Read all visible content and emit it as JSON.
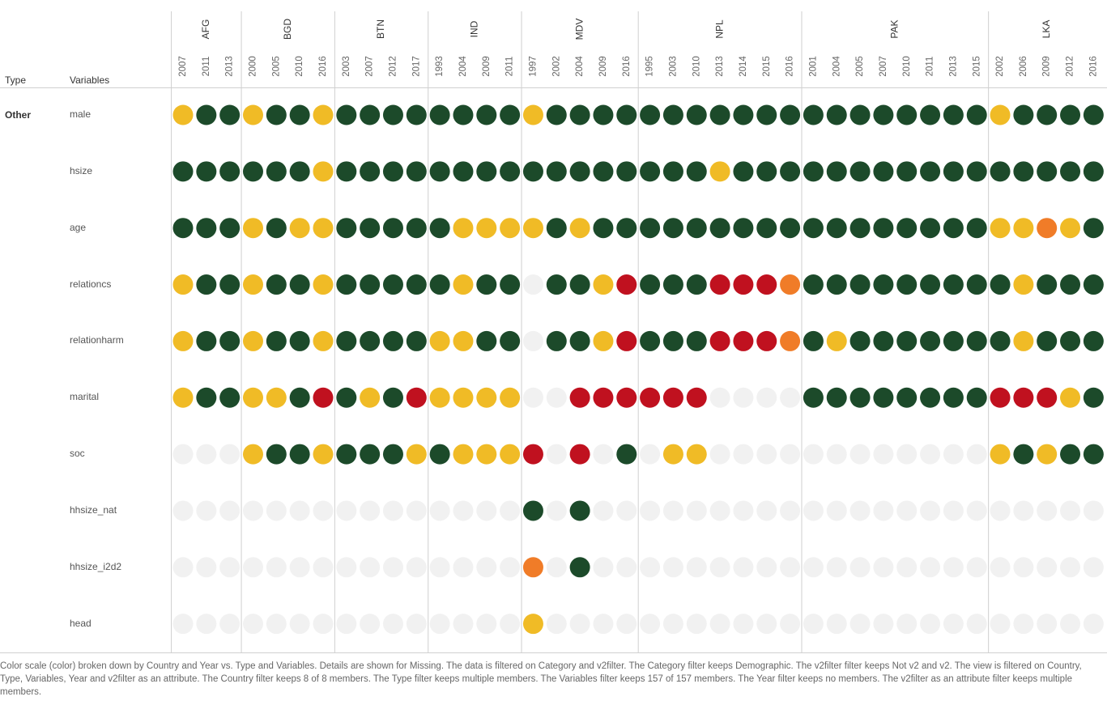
{
  "header": {
    "type_label": "Type",
    "variables_label": "Variables"
  },
  "type_value": "Other",
  "chart_data": {
    "type": "heatmap",
    "marks": "circle",
    "color_legend": {
      "G": "#1c4a2a",
      "Y": "#f0bb26",
      "O": "#f07c28",
      "R": "#c0111f",
      "M": "#f1f1f1"
    },
    "countries": [
      {
        "name": "AFG",
        "years": [
          "2007",
          "2011",
          "2013"
        ]
      },
      {
        "name": "BGD",
        "years": [
          "2000",
          "2005",
          "2010",
          "2016"
        ]
      },
      {
        "name": "BTN",
        "years": [
          "2003",
          "2007",
          "2012",
          "2017"
        ]
      },
      {
        "name": "IND",
        "years": [
          "1993",
          "2004",
          "2009",
          "2011"
        ]
      },
      {
        "name": "MDV",
        "years": [
          "1997",
          "2002",
          "2004",
          "2009",
          "2016"
        ]
      },
      {
        "name": "NPL",
        "years": [
          "1995",
          "2003",
          "2010",
          "2013",
          "2014",
          "2015",
          "2016"
        ]
      },
      {
        "name": "PAK",
        "years": [
          "2001",
          "2004",
          "2005",
          "2007",
          "2010",
          "2011",
          "2013",
          "2015"
        ]
      },
      {
        "name": "LKA",
        "years": [
          "2002",
          "2006",
          "2009",
          "2012",
          "2016"
        ]
      }
    ],
    "variables": [
      "male",
      "hsize",
      "age",
      "relationcs",
      "relationharm",
      "marital",
      "soc",
      "hhsize_nat",
      "hhsize_i2d2",
      "head"
    ],
    "values": [
      "YGGYGGYGGGGGGGGYGGGGGGGGGGGGGGGGGGGYGGGG",
      "GGGGGGYGGGGGGGGGGGGGGGGYGGGGGGGGGGGGGGGG",
      "GGGYGYYGGGGGYYYYGYGGGGGGGGGGGGGGGGGYYOYG",
      "YGGYGGYGGGGGYGGMGGYRGGGRRROGGGGGGGGGYGGG",
      "YGGYGGYGGGGYYGGMGGYRGGGRRROGYGGGGGGGYGGG",
      "YGGYYGRGYGRYYYYMMRRRRRRMMMMGGGGGGGGRRRYG",
      "MMMYGGYGGGYGYYYRMRMGMYYMMMMMMMMMMMMYGYGG",
      "MMMMMMMMMMMMMMMGMGMMMMMMMMMMMMMMMMMMMMMM",
      "MMMMMMMMMMMMMMMOMGMMMMMMMMMMMMMMMMMMMMMM",
      "MMMMMMMMMMMMMMMYMMMMMMMMMMMMMMMMMMMMMMMM"
    ]
  },
  "caption": "Color scale (color) broken down by Country and Year vs. Type and Variables.  Details are shown for Missing. The data is filtered on Category and v2filter. The Category filter keeps Demographic. The v2filter filter keeps Not v2 and v2. The view is filtered on Country, Type, Variables, Year and v2filter as an attribute. The Country filter keeps 8 of 8 members. The Type filter keeps multiple members. The Variables filter keeps 157 of 157 members. The Year filter keeps no members. The v2filter as an attribute filter keeps multiple members."
}
